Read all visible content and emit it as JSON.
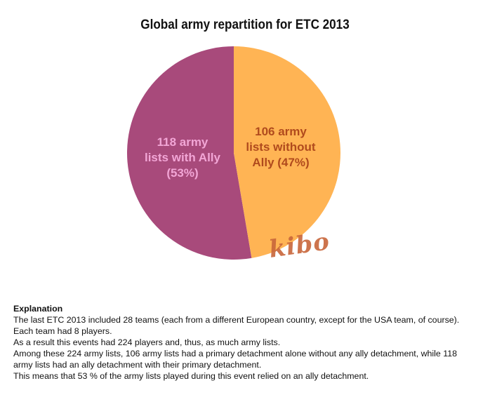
{
  "chart_data": {
    "type": "pie",
    "title": "Global army repartition for ETC 2013",
    "slices": [
      {
        "label_lines": [
          "118 army",
          "lists with Ally",
          "(53%)"
        ],
        "value": 118,
        "percent": 53,
        "color": "#a84a7b"
      },
      {
        "label_lines": [
          "106 army",
          "lists without",
          "Ally (47%)"
        ],
        "value": 106,
        "percent": 47,
        "color": "#ffb454"
      }
    ]
  },
  "watermark": "kibo",
  "explanation": {
    "heading": "Explanation",
    "lines": [
      "The last ETC 2013 included 28 teams (each from a different European country, except for the USA team, of course). Each team had 8 players.",
      "As a result this events had 224 players and, thus, as much army lists.",
      "Among these 224 army lists, 106 army lists had a primary detachment alone without any ally detachment, while 118 army lists had an ally detachment with their primary detachment.",
      "This means that 53 % of the army lists played during this event relied on an ally detachment."
    ]
  }
}
